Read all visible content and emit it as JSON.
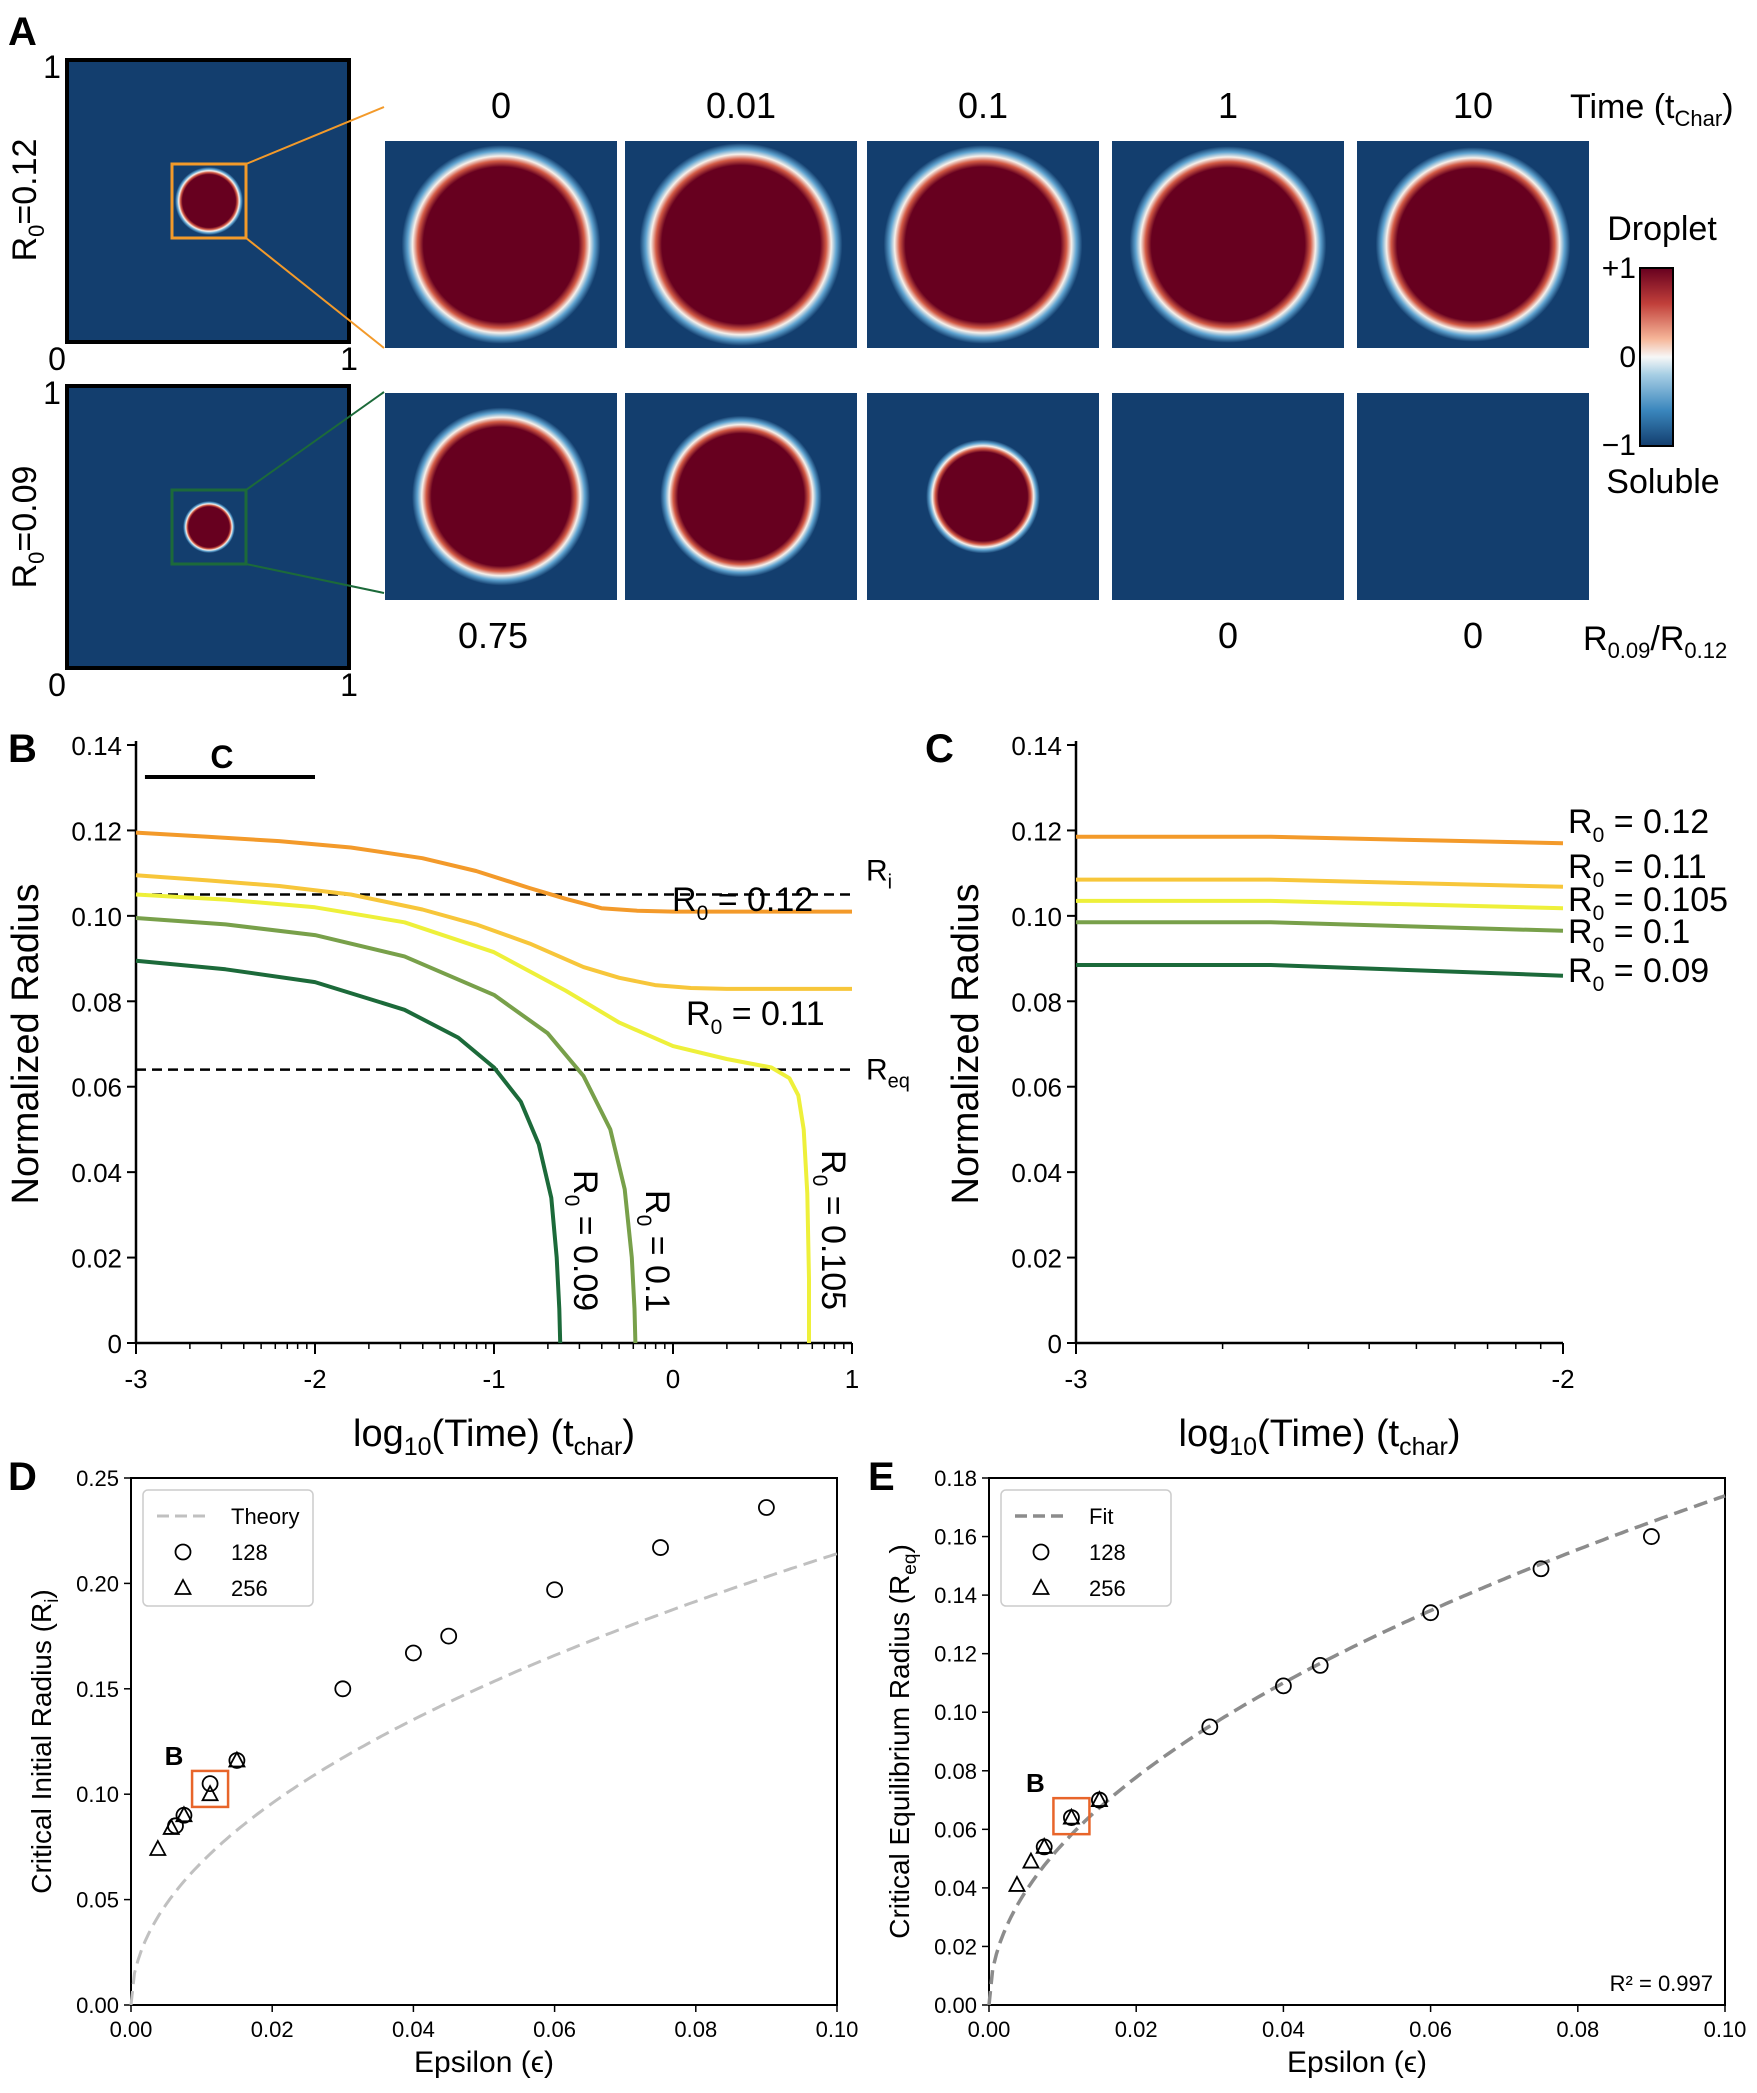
{
  "panel_letters": {
    "a": "A",
    "b": "B",
    "c": "C",
    "d": "D",
    "e": "E"
  },
  "colors": {
    "droplet": "#67001f",
    "soluble": "#133e6e",
    "r012": "#f39a2a",
    "r011": "#f7c63a",
    "r0105": "#eef03a",
    "r010": "#78a04a",
    "r009": "#1c6a3a",
    "zoom_top": "#f39a2a",
    "zoom_bottom": "#1c6a3a",
    "highlight": "#e8652a",
    "theory": "#c0c0c0",
    "fit": "#8c8c8c"
  },
  "panel_a": {
    "time_header": "Time (t",
    "time_header_sub": "Char",
    "time_header_end": ")",
    "times": [
      "0",
      "0.01",
      "0.1",
      "1",
      "10"
    ],
    "row_top_label": "R",
    "row_top_sub": "0",
    "row_top_value": "=0.12",
    "row_bottom_label": "R",
    "row_bottom_sub": "0",
    "row_bottom_value": "=0.09",
    "axis_ticks": {
      "y_top": "1",
      "origin": "0",
      "x_right": "1"
    },
    "ratio_label": "R",
    "ratio_sub1": "0.09",
    "ratio_mid": "/R",
    "ratio_sub2": "0.12",
    "ratios": [
      "0.75",
      "",
      "",
      "0",
      "0"
    ],
    "colorbar": {
      "top_label": "Droplet",
      "bottom_label": "Soluble",
      "ticks": [
        "+1",
        "0",
        "−1"
      ]
    }
  },
  "chart_data": [
    {
      "id": "B",
      "type": "line",
      "xlabel": "log10(Time) (tchar)",
      "ylabel": "Normalized Radius",
      "xlim": [
        -3,
        1
      ],
      "ylim": [
        0,
        0.14
      ],
      "xticks": [
        "-3",
        "-2",
        "-1",
        "0",
        "1"
      ],
      "yticks": [
        "0",
        "0.02",
        "0.04",
        "0.06",
        "0.08",
        "0.10",
        "0.12",
        "0.14"
      ],
      "scale_bar_label": "C",
      "scale_bar_range": [
        -2.95,
        -2.0
      ],
      "hlines": [
        {
          "y": 0.105,
          "label": "R",
          "sub": "i"
        },
        {
          "y": 0.064,
          "label": "R",
          "sub": "eq"
        }
      ],
      "series": [
        {
          "name": "R0 = 0.12",
          "color_key": "r012",
          "label_text": "= 0.12",
          "x": [
            -3,
            -2.6,
            -2.2,
            -1.8,
            -1.4,
            -1.1,
            -0.8,
            -0.6,
            -0.4,
            -0.2,
            0.0,
            0.5,
            1.0
          ],
          "y": [
            0.1195,
            0.1185,
            0.1175,
            0.116,
            0.1135,
            0.1105,
            0.1065,
            0.104,
            0.1018,
            0.1012,
            0.101,
            0.101,
            0.101
          ]
        },
        {
          "name": "R0 = 0.11",
          "color_key": "r011",
          "label_text": "= 0.11",
          "x": [
            -3,
            -2.6,
            -2.2,
            -1.8,
            -1.4,
            -1.1,
            -0.8,
            -0.5,
            -0.3,
            -0.1,
            0.1,
            0.3,
            0.6,
            1.0
          ],
          "y": [
            0.1095,
            0.1083,
            0.107,
            0.105,
            0.1015,
            0.098,
            0.0935,
            0.088,
            0.0855,
            0.0838,
            0.0831,
            0.0829,
            0.0829,
            0.0829
          ]
        },
        {
          "name": "R0 = 0.105",
          "color_key": "r0105",
          "label_text": "= 0.105",
          "x": [
            -3,
            -2.5,
            -2.0,
            -1.5,
            -1.0,
            -0.6,
            -0.3,
            0.0,
            0.3,
            0.55,
            0.65,
            0.7,
            0.73,
            0.75,
            0.76,
            0.76
          ],
          "y": [
            0.105,
            0.1038,
            0.102,
            0.0985,
            0.0915,
            0.0825,
            0.075,
            0.0695,
            0.0665,
            0.0645,
            0.062,
            0.058,
            0.05,
            0.035,
            0.015,
            0.0
          ]
        },
        {
          "name": "R0 = 0.1",
          "color_key": "r010",
          "label_text": "= 0.1",
          "x": [
            -3,
            -2.5,
            -2.0,
            -1.5,
            -1.0,
            -0.7,
            -0.5,
            -0.35,
            -0.27,
            -0.23,
            -0.215,
            -0.21
          ],
          "y": [
            0.0995,
            0.098,
            0.0955,
            0.0905,
            0.0815,
            0.0725,
            0.0625,
            0.05,
            0.036,
            0.02,
            0.008,
            0.0
          ]
        },
        {
          "name": "R0 = 0.09",
          "color_key": "r009",
          "label_text": "= 0.09",
          "x": [
            -3,
            -2.5,
            -2.0,
            -1.5,
            -1.2,
            -1.0,
            -0.85,
            -0.75,
            -0.68,
            -0.65,
            -0.635,
            -0.63
          ],
          "y": [
            0.0895,
            0.0875,
            0.0845,
            0.078,
            0.0715,
            0.0645,
            0.0565,
            0.0465,
            0.034,
            0.02,
            0.008,
            0.0
          ]
        }
      ]
    },
    {
      "id": "C",
      "type": "line",
      "xlabel": "log10(Time) (tchar)",
      "ylabel": "Normalized Radius",
      "xlim": [
        -3,
        -2
      ],
      "ylim": [
        0,
        0.14
      ],
      "xticks": [
        "-3",
        "-2"
      ],
      "yticks": [
        "0",
        "0.02",
        "0.04",
        "0.06",
        "0.08",
        "0.10",
        "0.12",
        "0.14"
      ],
      "series": [
        {
          "name": "R0 = 0.12",
          "color_key": "r012",
          "label_text": "= 0.12",
          "x": [
            -3,
            -2.6,
            -2.0
          ],
          "y": [
            0.1185,
            0.1185,
            0.117
          ]
        },
        {
          "name": "R0 = 0.11",
          "color_key": "r011",
          "label_text": "= 0.11",
          "x": [
            -3,
            -2.6,
            -2.0
          ],
          "y": [
            0.1085,
            0.1085,
            0.1068
          ]
        },
        {
          "name": "R0 = 0.105",
          "color_key": "r0105",
          "label_text": "= 0.105",
          "x": [
            -3,
            -2.6,
            -2.0
          ],
          "y": [
            0.1035,
            0.1035,
            0.1018
          ]
        },
        {
          "name": "R0 = 0.1",
          "color_key": "r010",
          "label_text": "= 0.1",
          "x": [
            -3,
            -2.6,
            -2.0
          ],
          "y": [
            0.0985,
            0.0985,
            0.0965
          ]
        },
        {
          "name": "R0 = 0.09",
          "color_key": "r009",
          "label_text": "= 0.09",
          "x": [
            -3,
            -2.6,
            -2.0
          ],
          "y": [
            0.0885,
            0.0885,
            0.086
          ]
        }
      ]
    },
    {
      "id": "D",
      "type": "scatter",
      "xlabel": "Epsilon (ϵ)",
      "ylabel": "Critical Initial Radius (R",
      "ylabel_sub": "i",
      "xlim": [
        0,
        0.1
      ],
      "ylim": [
        0,
        0.25
      ],
      "xticks": [
        "0.00",
        "0.02",
        "0.04",
        "0.06",
        "0.08",
        "0.10"
      ],
      "yticks": [
        "0.00",
        "0.05",
        "0.10",
        "0.15",
        "0.20",
        "0.25"
      ],
      "legend": [
        "Theory",
        "128",
        "256"
      ],
      "highlight_label": "B",
      "highlight_center": [
        0.0112,
        0.1025
      ],
      "curve_coef": 0.677,
      "series": [
        {
          "name": "128",
          "marker": "circle",
          "x": [
            0.0063,
            0.0075,
            0.0112,
            0.015,
            0.03,
            0.04,
            0.045,
            0.06,
            0.075,
            0.09
          ],
          "y": [
            0.085,
            0.09,
            0.105,
            0.116,
            0.15,
            0.167,
            0.175,
            0.197,
            0.217,
            0.236
          ]
        },
        {
          "name": "256",
          "marker": "triangle",
          "x": [
            0.0038,
            0.0057,
            0.0075,
            0.0112,
            0.015
          ],
          "y": [
            0.074,
            0.084,
            0.09,
            0.1,
            0.116
          ]
        }
      ]
    },
    {
      "id": "E",
      "type": "scatter",
      "xlabel": "Epsilon (ϵ)",
      "ylabel": "Critical Equilibrium Radius (R",
      "ylabel_sub": "eq",
      "xlim": [
        0,
        0.1
      ],
      "ylim": [
        0,
        0.18
      ],
      "xticks": [
        "0.00",
        "0.02",
        "0.04",
        "0.06",
        "0.08",
        "0.10"
      ],
      "yticks": [
        "0.00",
        "0.02",
        "0.04",
        "0.06",
        "0.08",
        "0.10",
        "0.12",
        "0.14",
        "0.16",
        "0.18"
      ],
      "legend": [
        "Fit",
        "128",
        "256"
      ],
      "r2": "R² = 0.997",
      "highlight_label": "B",
      "highlight_center": [
        0.0112,
        0.0645
      ],
      "curve_coef": 0.55,
      "series": [
        {
          "name": "128",
          "marker": "circle",
          "x": [
            0.0075,
            0.0112,
            0.015,
            0.03,
            0.04,
            0.045,
            0.06,
            0.075,
            0.09
          ],
          "y": [
            0.054,
            0.064,
            0.07,
            0.095,
            0.109,
            0.116,
            0.134,
            0.149,
            0.16
          ]
        },
        {
          "name": "256",
          "marker": "triangle",
          "x": [
            0.0038,
            0.0057,
            0.0075,
            0.0112,
            0.015
          ],
          "y": [
            0.041,
            0.049,
            0.054,
            0.064,
            0.07
          ]
        }
      ]
    }
  ]
}
